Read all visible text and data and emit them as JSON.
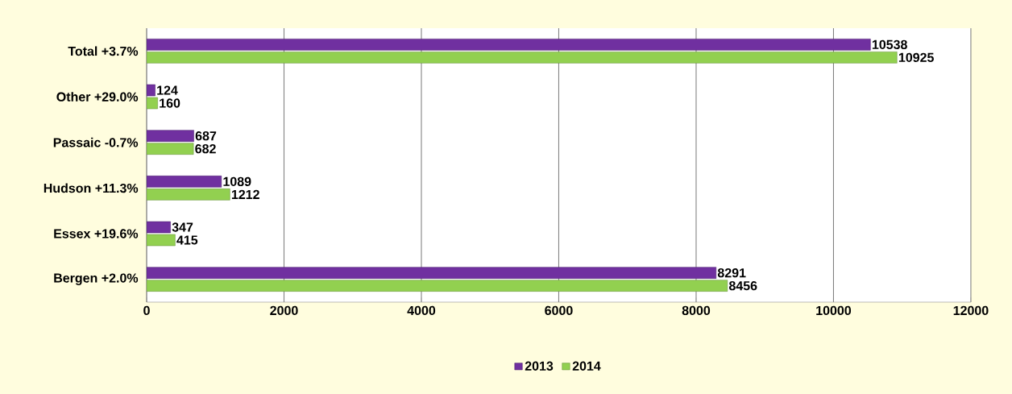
{
  "chart_data": {
    "type": "bar",
    "orientation": "horizontal",
    "categories": [
      "Total   +3.7%",
      "Other  +29.0%",
      "Passaic  -0.7%",
      "Hudson  +11.3%",
      "Essex  +19.6%",
      "Bergen +2.0%"
    ],
    "series": [
      {
        "name": "2013",
        "color": "#7030a0",
        "values": [
          10538,
          124,
          687,
          1089,
          347,
          8291
        ]
      },
      {
        "name": "2014",
        "color": "#92d050",
        "values": [
          10925,
          160,
          682,
          1212,
          415,
          8456
        ]
      }
    ],
    "xlim": [
      0,
      12000
    ],
    "xticks": [
      0,
      2000,
      4000,
      6000,
      8000,
      10000,
      12000
    ],
    "grid": "x",
    "legend": "bottom",
    "data_labels": true
  }
}
